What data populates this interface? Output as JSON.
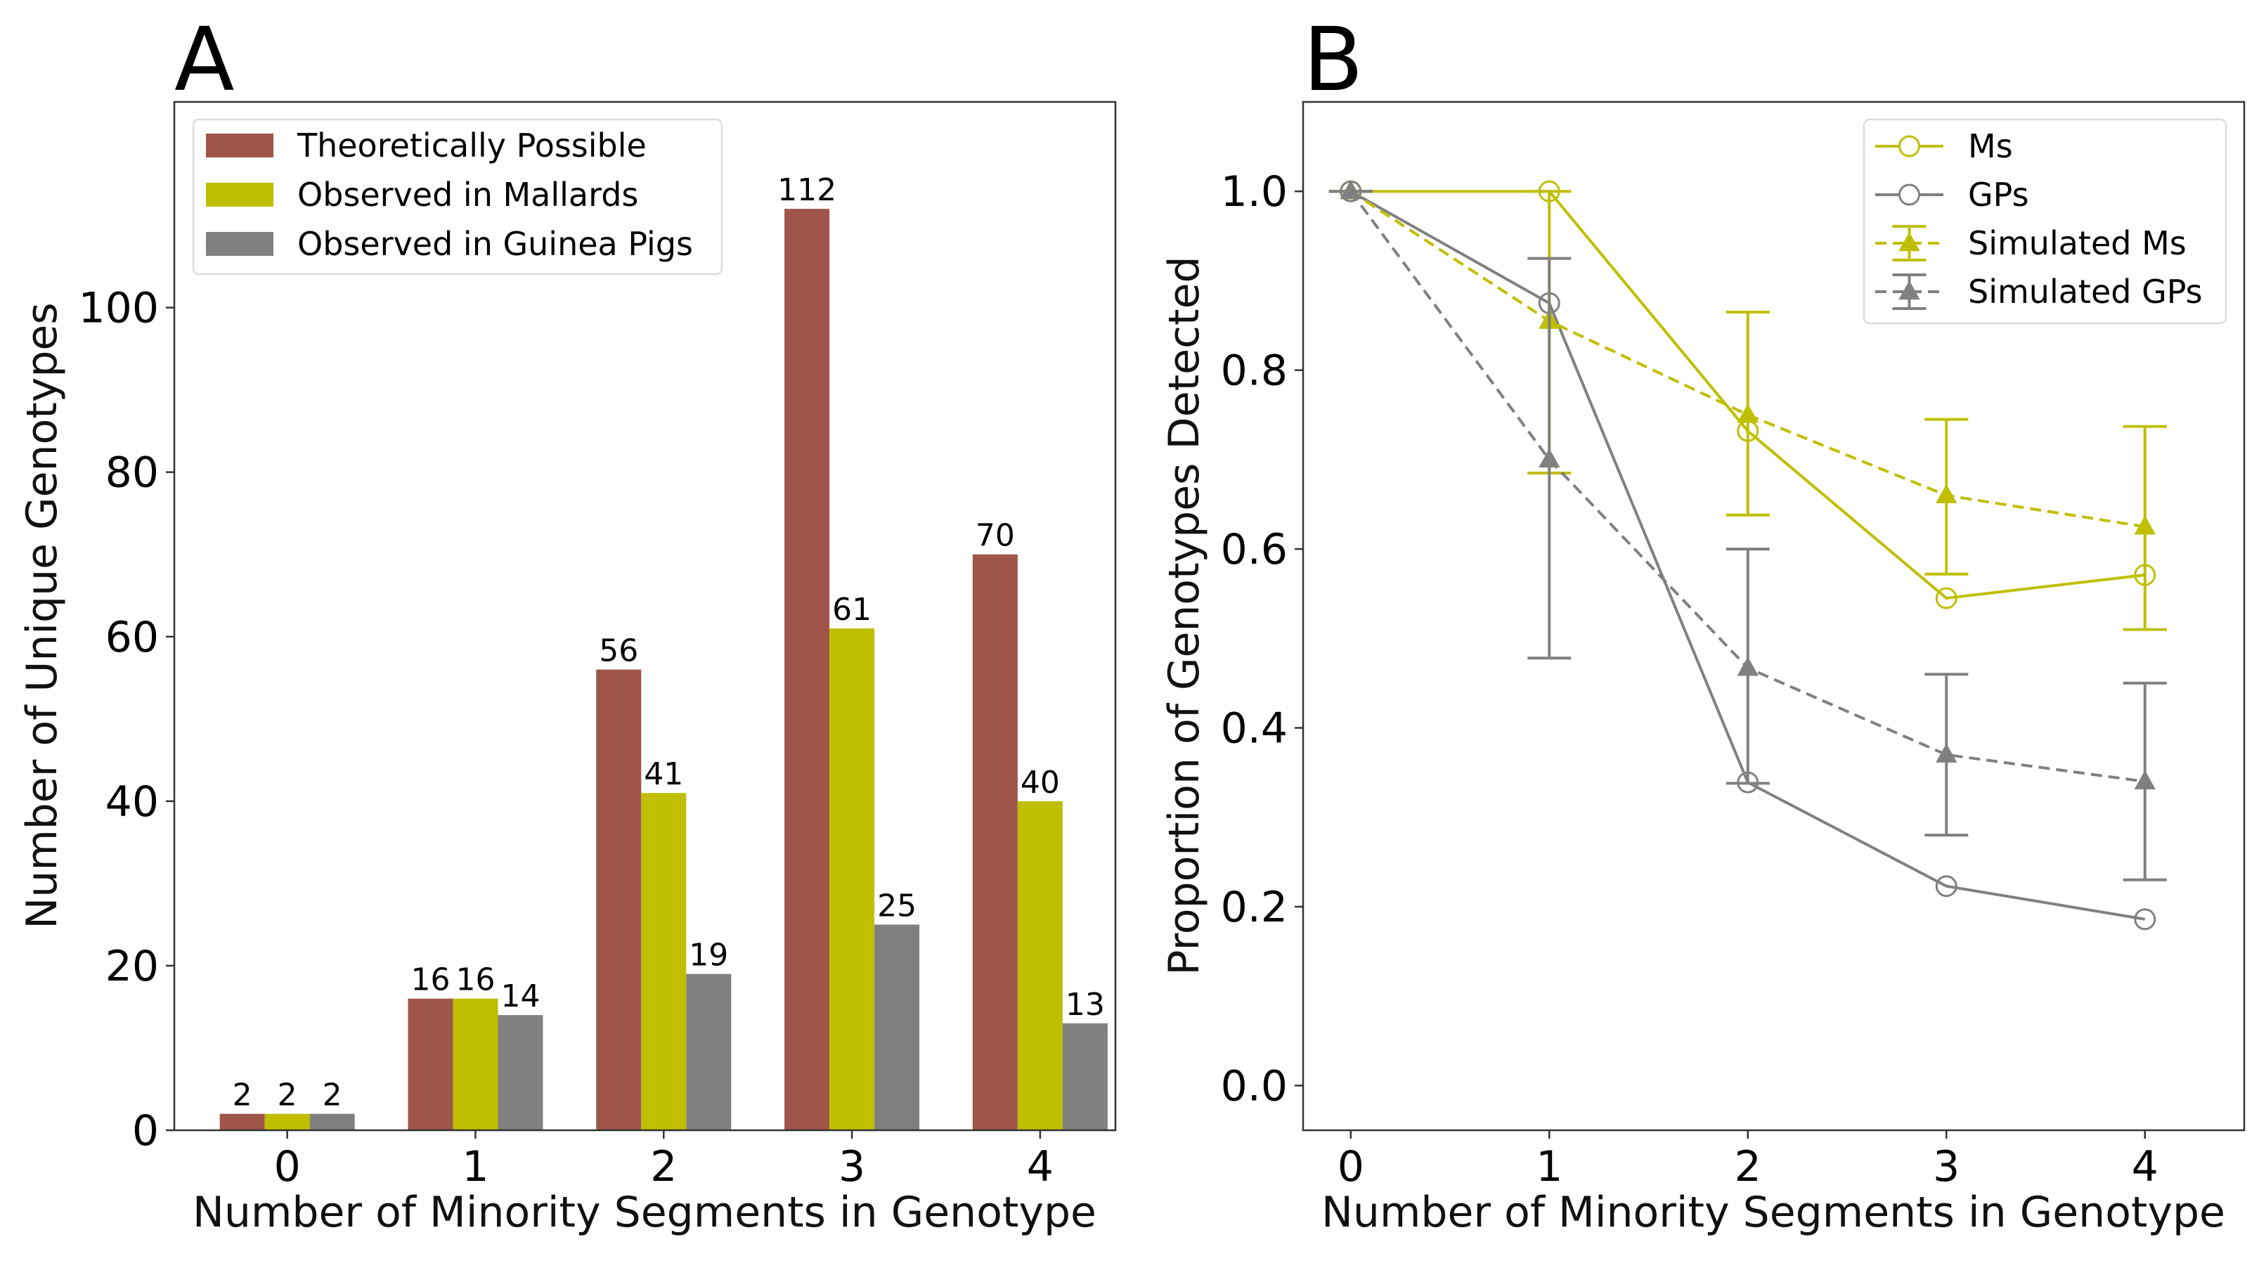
{
  "colors": {
    "theoretical": "#a0554a",
    "mallards": "#bfbf00",
    "guinea_pigs": "#808080"
  },
  "chart_data": [
    {
      "panel": "A",
      "type": "bar",
      "xlabel": "Number of Minority Segments in Genotype",
      "ylabel": "Number of Unique Genotypes",
      "categories": [
        "0",
        "1",
        "2",
        "3",
        "4"
      ],
      "ylim": [
        0,
        125
      ],
      "yticks": [
        0,
        20,
        40,
        60,
        80,
        100
      ],
      "legend": "top-left",
      "series": [
        {
          "name": "Theoretically Possible",
          "values": [
            2,
            16,
            56,
            112,
            70
          ]
        },
        {
          "name": "Observed in Mallards",
          "values": [
            2,
            16,
            41,
            61,
            40
          ]
        },
        {
          "name": "Observed in Guinea Pigs",
          "values": [
            2,
            14,
            19,
            25,
            13
          ]
        }
      ]
    },
    {
      "panel": "B",
      "type": "line",
      "xlabel": "Number of Minority Segments in Genotype",
      "ylabel": "Proportion of Genotypes Detected",
      "x": [
        0,
        1,
        2,
        3,
        4
      ],
      "xlim": [
        -0.24,
        4.5
      ],
      "ylim": [
        -0.05,
        1.1
      ],
      "yticks": [
        "0.0",
        "0.2",
        "0.4",
        "0.6",
        "0.8",
        "1.0"
      ],
      "legend": "top-right",
      "series": [
        {
          "name": "Ms",
          "style": "solid-circle",
          "values": [
            1.0,
            1.0,
            0.732,
            0.545,
            0.571
          ]
        },
        {
          "name": "GPs",
          "style": "solid-circle",
          "values": [
            1.0,
            0.875,
            0.339,
            0.223,
            0.186
          ]
        },
        {
          "name": "Simulated Ms",
          "style": "dashed-triangle",
          "values": [
            1.0,
            0.855,
            0.75,
            0.66,
            0.625
          ],
          "err_low": [
            1.0,
            0.685,
            0.638,
            0.572,
            0.51
          ],
          "err_high": [
            1.0,
            1.0,
            0.865,
            0.745,
            0.737
          ]
        },
        {
          "name": "Simulated GPs",
          "style": "dashed-triangle",
          "values": [
            1.0,
            0.7,
            0.467,
            0.37,
            0.34
          ],
          "err_low": [
            1.0,
            0.478,
            0.338,
            0.28,
            0.23
          ],
          "err_high": [
            1.0,
            0.925,
            0.6,
            0.46,
            0.45
          ]
        }
      ]
    }
  ]
}
